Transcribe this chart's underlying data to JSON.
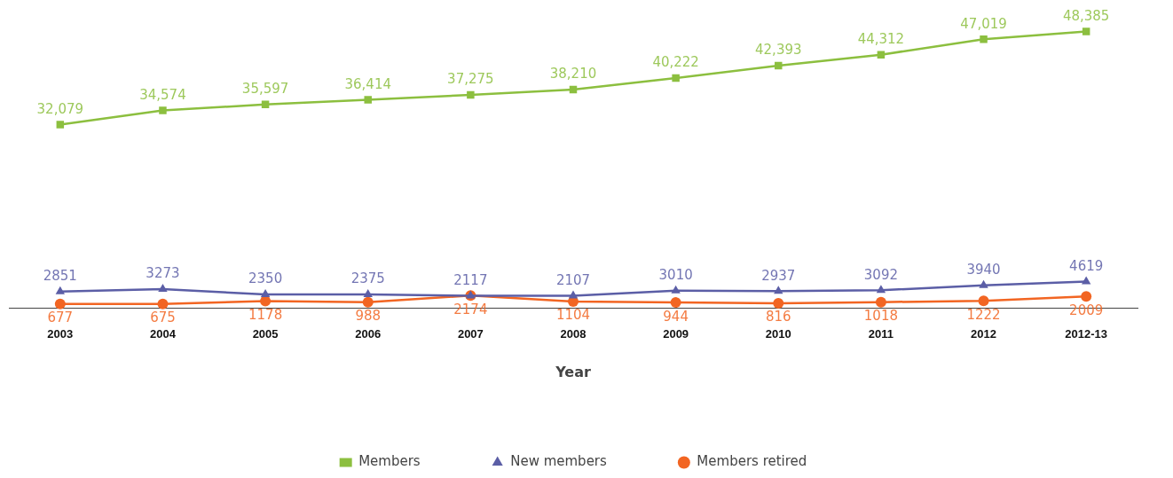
{
  "chart_data": {
    "type": "line",
    "xlabel": "Year",
    "categories": [
      "2003",
      "2004",
      "2005",
      "2006",
      "2007",
      "2008",
      "2009",
      "2010",
      "2011",
      "2012",
      "2012-13"
    ],
    "series": [
      {
        "name": "Members",
        "color": "#8cbf3f",
        "marker": "square",
        "values": [
          32079,
          34574,
          35597,
          36414,
          37275,
          38210,
          40222,
          42393,
          44312,
          47019,
          48385
        ],
        "value_labels": [
          "32,079",
          "34,574",
          "35,597",
          "36,414",
          "37,275",
          "38,210",
          "40,222",
          "42,393",
          "44,312",
          "47,019",
          "48,385"
        ]
      },
      {
        "name": "New members",
        "color": "#5b5ea6",
        "marker": "triangle",
        "values": [
          2851,
          3273,
          2350,
          2375,
          2117,
          2107,
          3010,
          2937,
          3092,
          3940,
          4619
        ],
        "value_labels": [
          "2851",
          "3273",
          "2350",
          "2375",
          "2117",
          "2107",
          "3010",
          "2937",
          "3092",
          "3940",
          "4619"
        ]
      },
      {
        "name": "Members retired",
        "color": "#f26522",
        "marker": "circle",
        "values": [
          677,
          675,
          1178,
          988,
          2174,
          1104,
          944,
          816,
          1018,
          1222,
          2009
        ],
        "value_labels": [
          "677",
          "675",
          "1178",
          "988",
          "2174",
          "1104",
          "944",
          "816",
          "1018",
          "1222",
          "2009"
        ]
      }
    ],
    "grid": false,
    "legend": "bottom",
    "tick_labels": "x"
  }
}
